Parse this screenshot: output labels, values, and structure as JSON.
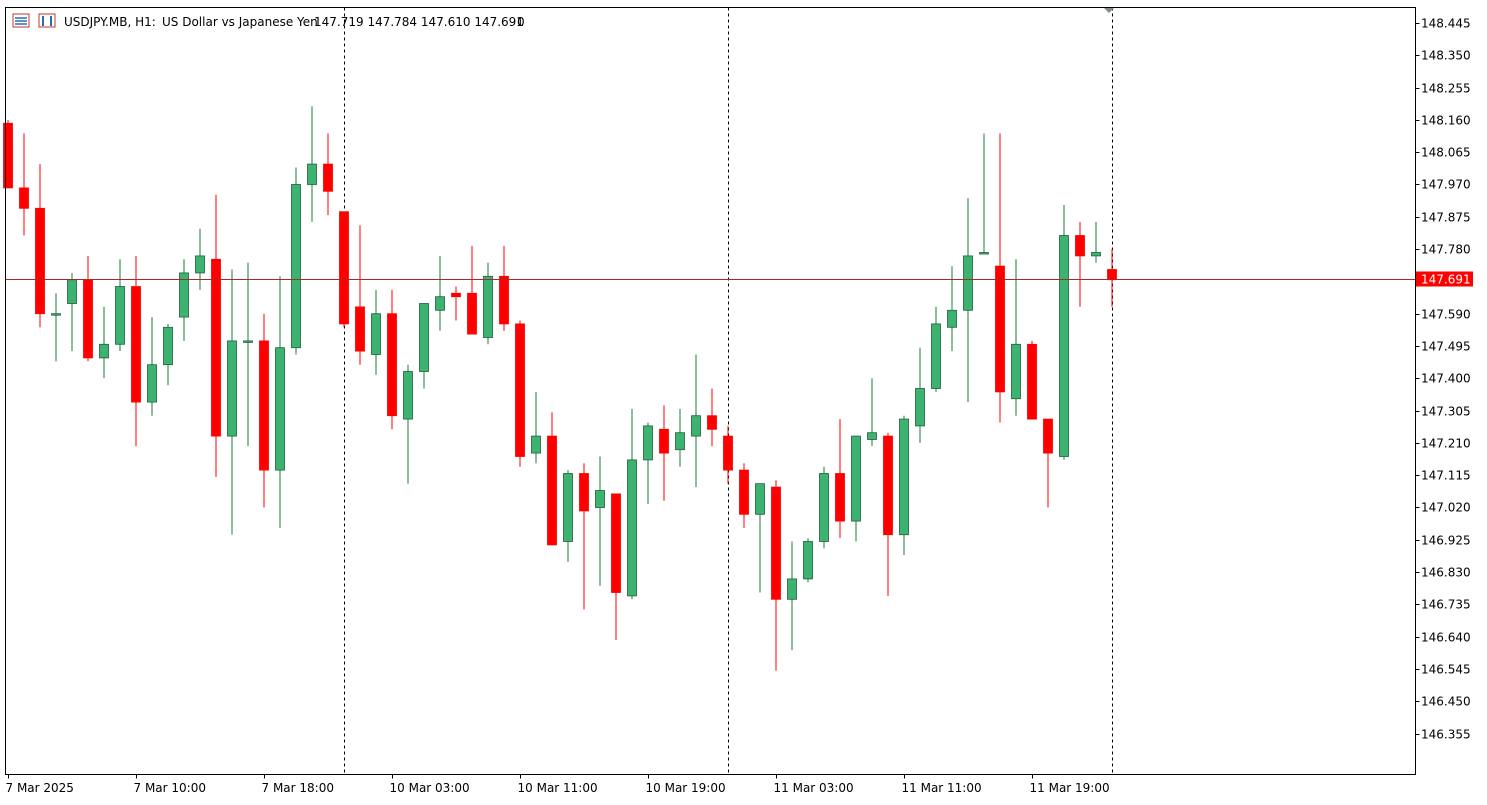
{
  "header": {
    "symbol_timeframe": "USDJPY.MB, H1:",
    "description": "US Dollar vs Japanese Yen",
    "ohlc": "147.719 147.784 147.610 147.691",
    "extra": "0",
    "icons": [
      "chart-list-icon",
      "one-click-trading-icon"
    ]
  },
  "chart_data": {
    "type": "candlestick",
    "symbol": "USDJPY.MB",
    "timeframe": "H1",
    "ylim": [
      146.27,
      148.47
    ],
    "y_ticks": [
      "148.445",
      "148.350",
      "148.255",
      "148.160",
      "148.065",
      "147.970",
      "147.875",
      "147.780",
      "147.690",
      "147.590",
      "147.495",
      "147.400",
      "147.305",
      "147.210",
      "147.115",
      "147.020",
      "146.925",
      "146.830",
      "146.735",
      "146.640",
      "146.545",
      "146.450",
      "146.355"
    ],
    "x_ticks": [
      {
        "label": "7 Mar 2025",
        "index": 0
      },
      {
        "label": "7 Mar 10:00",
        "index": 8
      },
      {
        "label": "7 Mar 18:00",
        "index": 16
      },
      {
        "label": "10 Mar 03:00",
        "index": 24
      },
      {
        "label": "10 Mar 11:00",
        "index": 32
      },
      {
        "label": "10 Mar 19:00",
        "index": 40
      },
      {
        "label": "11 Mar 03:00",
        "index": 48
      },
      {
        "label": "11 Mar 11:00",
        "index": 56
      },
      {
        "label": "11 Mar 19:00",
        "index": 64
      }
    ],
    "session_separators": [
      21,
      45,
      69
    ],
    "current_price": "147.691",
    "candles": [
      {
        "o": 148.15,
        "h": 148.16,
        "l": 147.96,
        "c": 147.96
      },
      {
        "o": 147.96,
        "h": 148.12,
        "l": 147.82,
        "c": 147.9
      },
      {
        "o": 147.9,
        "h": 148.03,
        "l": 147.55,
        "c": 147.59
      },
      {
        "o": 147.59,
        "h": 147.65,
        "l": 147.45,
        "c": 147.59
      },
      {
        "o": 147.62,
        "h": 147.71,
        "l": 147.48,
        "c": 147.69
      },
      {
        "o": 147.69,
        "h": 147.76,
        "l": 147.45,
        "c": 147.46
      },
      {
        "o": 147.46,
        "h": 147.61,
        "l": 147.4,
        "c": 147.5
      },
      {
        "o": 147.5,
        "h": 147.75,
        "l": 147.48,
        "c": 147.67
      },
      {
        "o": 147.67,
        "h": 147.76,
        "l": 147.2,
        "c": 147.33
      },
      {
        "o": 147.33,
        "h": 147.58,
        "l": 147.29,
        "c": 147.44
      },
      {
        "o": 147.44,
        "h": 147.56,
        "l": 147.38,
        "c": 147.55
      },
      {
        "o": 147.58,
        "h": 147.75,
        "l": 147.51,
        "c": 147.71
      },
      {
        "o": 147.71,
        "h": 147.84,
        "l": 147.66,
        "c": 147.76
      },
      {
        "o": 147.75,
        "h": 147.94,
        "l": 147.11,
        "c": 147.23
      },
      {
        "o": 147.23,
        "h": 147.72,
        "l": 146.94,
        "c": 147.51
      },
      {
        "o": 147.51,
        "h": 147.74,
        "l": 147.2,
        "c": 147.51
      },
      {
        "o": 147.51,
        "h": 147.59,
        "l": 147.02,
        "c": 147.13
      },
      {
        "o": 147.13,
        "h": 147.7,
        "l": 146.96,
        "c": 147.49
      },
      {
        "o": 147.49,
        "h": 148.02,
        "l": 147.47,
        "c": 147.97
      },
      {
        "o": 147.97,
        "h": 148.2,
        "l": 147.86,
        "c": 148.03
      },
      {
        "o": 148.03,
        "h": 148.12,
        "l": 147.88,
        "c": 147.95
      },
      {
        "o": 147.89,
        "h": 147.89,
        "l": 147.55,
        "c": 147.56
      },
      {
        "o": 147.61,
        "h": 147.85,
        "l": 147.44,
        "c": 147.48
      },
      {
        "o": 147.47,
        "h": 147.66,
        "l": 147.41,
        "c": 147.59
      },
      {
        "o": 147.59,
        "h": 147.66,
        "l": 147.25,
        "c": 147.29
      },
      {
        "o": 147.28,
        "h": 147.44,
        "l": 147.09,
        "c": 147.42
      },
      {
        "o": 147.42,
        "h": 147.62,
        "l": 147.37,
        "c": 147.62
      },
      {
        "o": 147.6,
        "h": 147.76,
        "l": 147.54,
        "c": 147.64
      },
      {
        "o": 147.65,
        "h": 147.67,
        "l": 147.57,
        "c": 147.64
      },
      {
        "o": 147.65,
        "h": 147.79,
        "l": 147.53,
        "c": 147.53
      },
      {
        "o": 147.52,
        "h": 147.74,
        "l": 147.5,
        "c": 147.7
      },
      {
        "o": 147.7,
        "h": 147.79,
        "l": 147.54,
        "c": 147.56
      },
      {
        "o": 147.56,
        "h": 147.57,
        "l": 147.14,
        "c": 147.17
      },
      {
        "o": 147.18,
        "h": 147.36,
        "l": 147.15,
        "c": 147.23
      },
      {
        "o": 147.23,
        "h": 147.3,
        "l": 146.91,
        "c": 146.91
      },
      {
        "o": 146.92,
        "h": 147.13,
        "l": 146.86,
        "c": 147.12
      },
      {
        "o": 147.12,
        "h": 147.15,
        "l": 146.72,
        "c": 147.01
      },
      {
        "o": 147.02,
        "h": 147.17,
        "l": 146.79,
        "c": 147.07
      },
      {
        "o": 147.06,
        "h": 147.06,
        "l": 146.63,
        "c": 146.77
      },
      {
        "o": 146.76,
        "h": 147.31,
        "l": 146.75,
        "c": 147.16
      },
      {
        "o": 147.16,
        "h": 147.27,
        "l": 147.03,
        "c": 147.26
      },
      {
        "o": 147.25,
        "h": 147.32,
        "l": 147.04,
        "c": 147.18
      },
      {
        "o": 147.19,
        "h": 147.31,
        "l": 147.14,
        "c": 147.24
      },
      {
        "o": 147.23,
        "h": 147.47,
        "l": 147.08,
        "c": 147.29
      },
      {
        "o": 147.29,
        "h": 147.37,
        "l": 147.2,
        "c": 147.25
      },
      {
        "o": 147.23,
        "h": 147.26,
        "l": 147.09,
        "c": 147.13
      },
      {
        "o": 147.13,
        "h": 147.15,
        "l": 146.96,
        "c": 147.0
      },
      {
        "o": 147.0,
        "h": 147.09,
        "l": 146.77,
        "c": 147.09
      },
      {
        "o": 147.08,
        "h": 147.1,
        "l": 146.54,
        "c": 146.75
      },
      {
        "o": 146.75,
        "h": 146.92,
        "l": 146.6,
        "c": 146.81
      },
      {
        "o": 146.81,
        "h": 146.93,
        "l": 146.8,
        "c": 146.92
      },
      {
        "o": 146.92,
        "h": 147.14,
        "l": 146.9,
        "c": 147.12
      },
      {
        "o": 147.12,
        "h": 147.28,
        "l": 146.93,
        "c": 146.98
      },
      {
        "o": 146.98,
        "h": 147.23,
        "l": 146.92,
        "c": 147.23
      },
      {
        "o": 147.22,
        "h": 147.4,
        "l": 147.2,
        "c": 147.24
      },
      {
        "o": 147.23,
        "h": 147.24,
        "l": 146.76,
        "c": 146.94
      },
      {
        "o": 146.94,
        "h": 147.29,
        "l": 146.88,
        "c": 147.28
      },
      {
        "o": 147.26,
        "h": 147.49,
        "l": 147.21,
        "c": 147.37
      },
      {
        "o": 147.37,
        "h": 147.61,
        "l": 147.36,
        "c": 147.56
      },
      {
        "o": 147.55,
        "h": 147.73,
        "l": 147.48,
        "c": 147.6
      },
      {
        "o": 147.6,
        "h": 147.93,
        "l": 147.33,
        "c": 147.76
      },
      {
        "o": 147.77,
        "h": 148.12,
        "l": 147.77,
        "c": 147.77
      },
      {
        "o": 147.73,
        "h": 148.12,
        "l": 147.27,
        "c": 147.36
      },
      {
        "o": 147.34,
        "h": 147.75,
        "l": 147.29,
        "c": 147.5
      },
      {
        "o": 147.5,
        "h": 147.51,
        "l": 147.28,
        "c": 147.28
      },
      {
        "o": 147.28,
        "h": 147.28,
        "l": 147.02,
        "c": 147.18
      },
      {
        "o": 147.17,
        "h": 147.91,
        "l": 147.16,
        "c": 147.82
      },
      {
        "o": 147.82,
        "h": 147.86,
        "l": 147.61,
        "c": 147.76
      },
      {
        "o": 147.76,
        "h": 147.86,
        "l": 147.74,
        "c": 147.77
      },
      {
        "o": 147.72,
        "h": 147.78,
        "l": 147.61,
        "c": 147.69
      }
    ]
  },
  "colors": {
    "bull": "#3cb371",
    "bear": "#ff0000",
    "candle_outline": "#000000",
    "price_line": "#a52a2a",
    "price_label_bg": "#ff0000",
    "price_label_text": "#ffffff",
    "axis": "#000000",
    "text": "#000000"
  }
}
